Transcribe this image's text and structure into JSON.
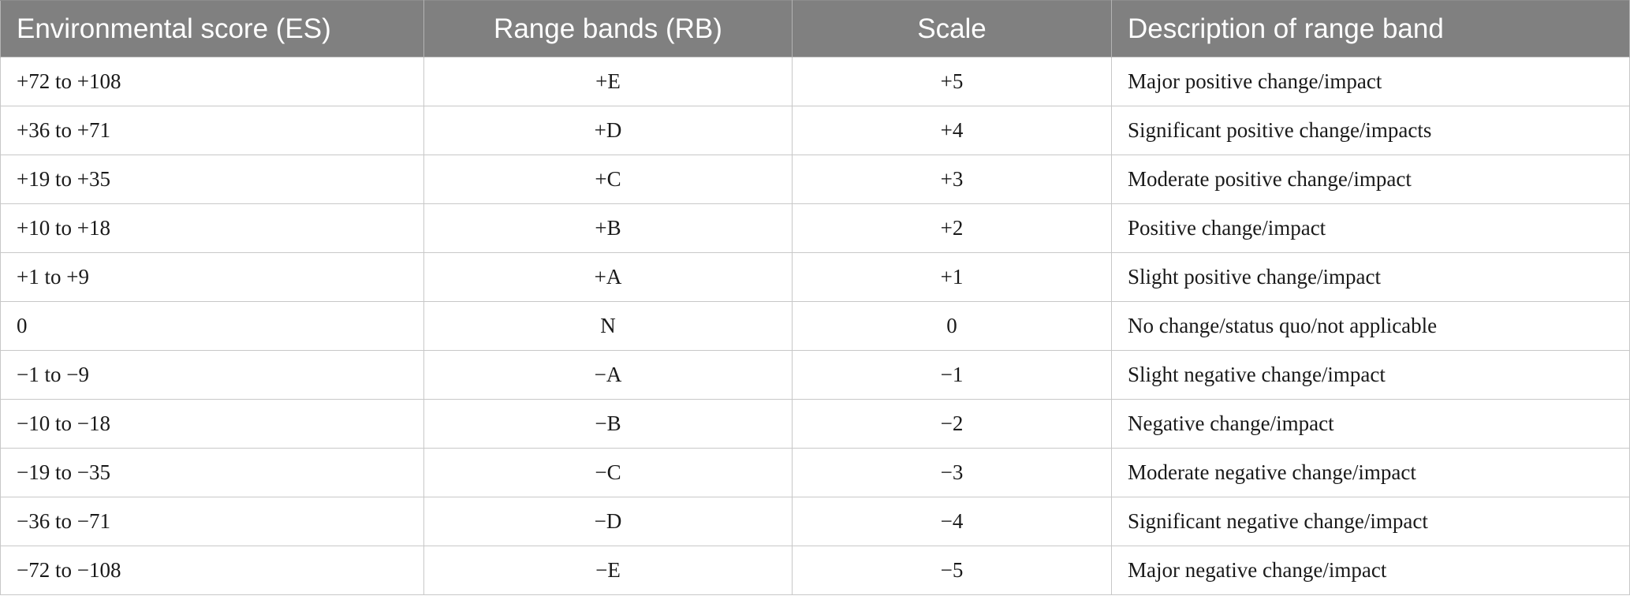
{
  "table": {
    "headers": [
      "Environmental score (ES)",
      "Range bands (RB)",
      "Scale",
      "Description of range band"
    ],
    "rows": [
      [
        "+72 to +108",
        "+E",
        "+5",
        "Major positive change/impact"
      ],
      [
        "+36 to +71",
        "+D",
        "+4",
        "Significant positive change/impacts"
      ],
      [
        "+19 to +35",
        "+C",
        "+3",
        "Moderate positive change/impact"
      ],
      [
        "+10 to +18",
        "+B",
        "+2",
        "Positive change/impact"
      ],
      [
        "+1 to +9",
        "+A",
        "+1",
        "Slight positive change/impact"
      ],
      [
        "0",
        "N",
        "0",
        "No change/status quo/not applicable"
      ],
      [
        "−1 to −9",
        "−A",
        "−1",
        "Slight negative change/impact"
      ],
      [
        "−10 to −18",
        "−B",
        "−2",
        "Negative change/impact"
      ],
      [
        "−19 to −35",
        "−C",
        "−3",
        "Moderate negative change/impact"
      ],
      [
        "−36 to −71",
        "−D",
        "−4",
        "Significant negative change/impact"
      ],
      [
        "−72 to −108",
        "−E",
        "−5",
        "Major negative change/impact"
      ]
    ]
  },
  "colors": {
    "header_background": "#808080",
    "header_text": "#ffffff",
    "grid_line": "#c8c8c8",
    "body_text": "#1a1a1a"
  }
}
